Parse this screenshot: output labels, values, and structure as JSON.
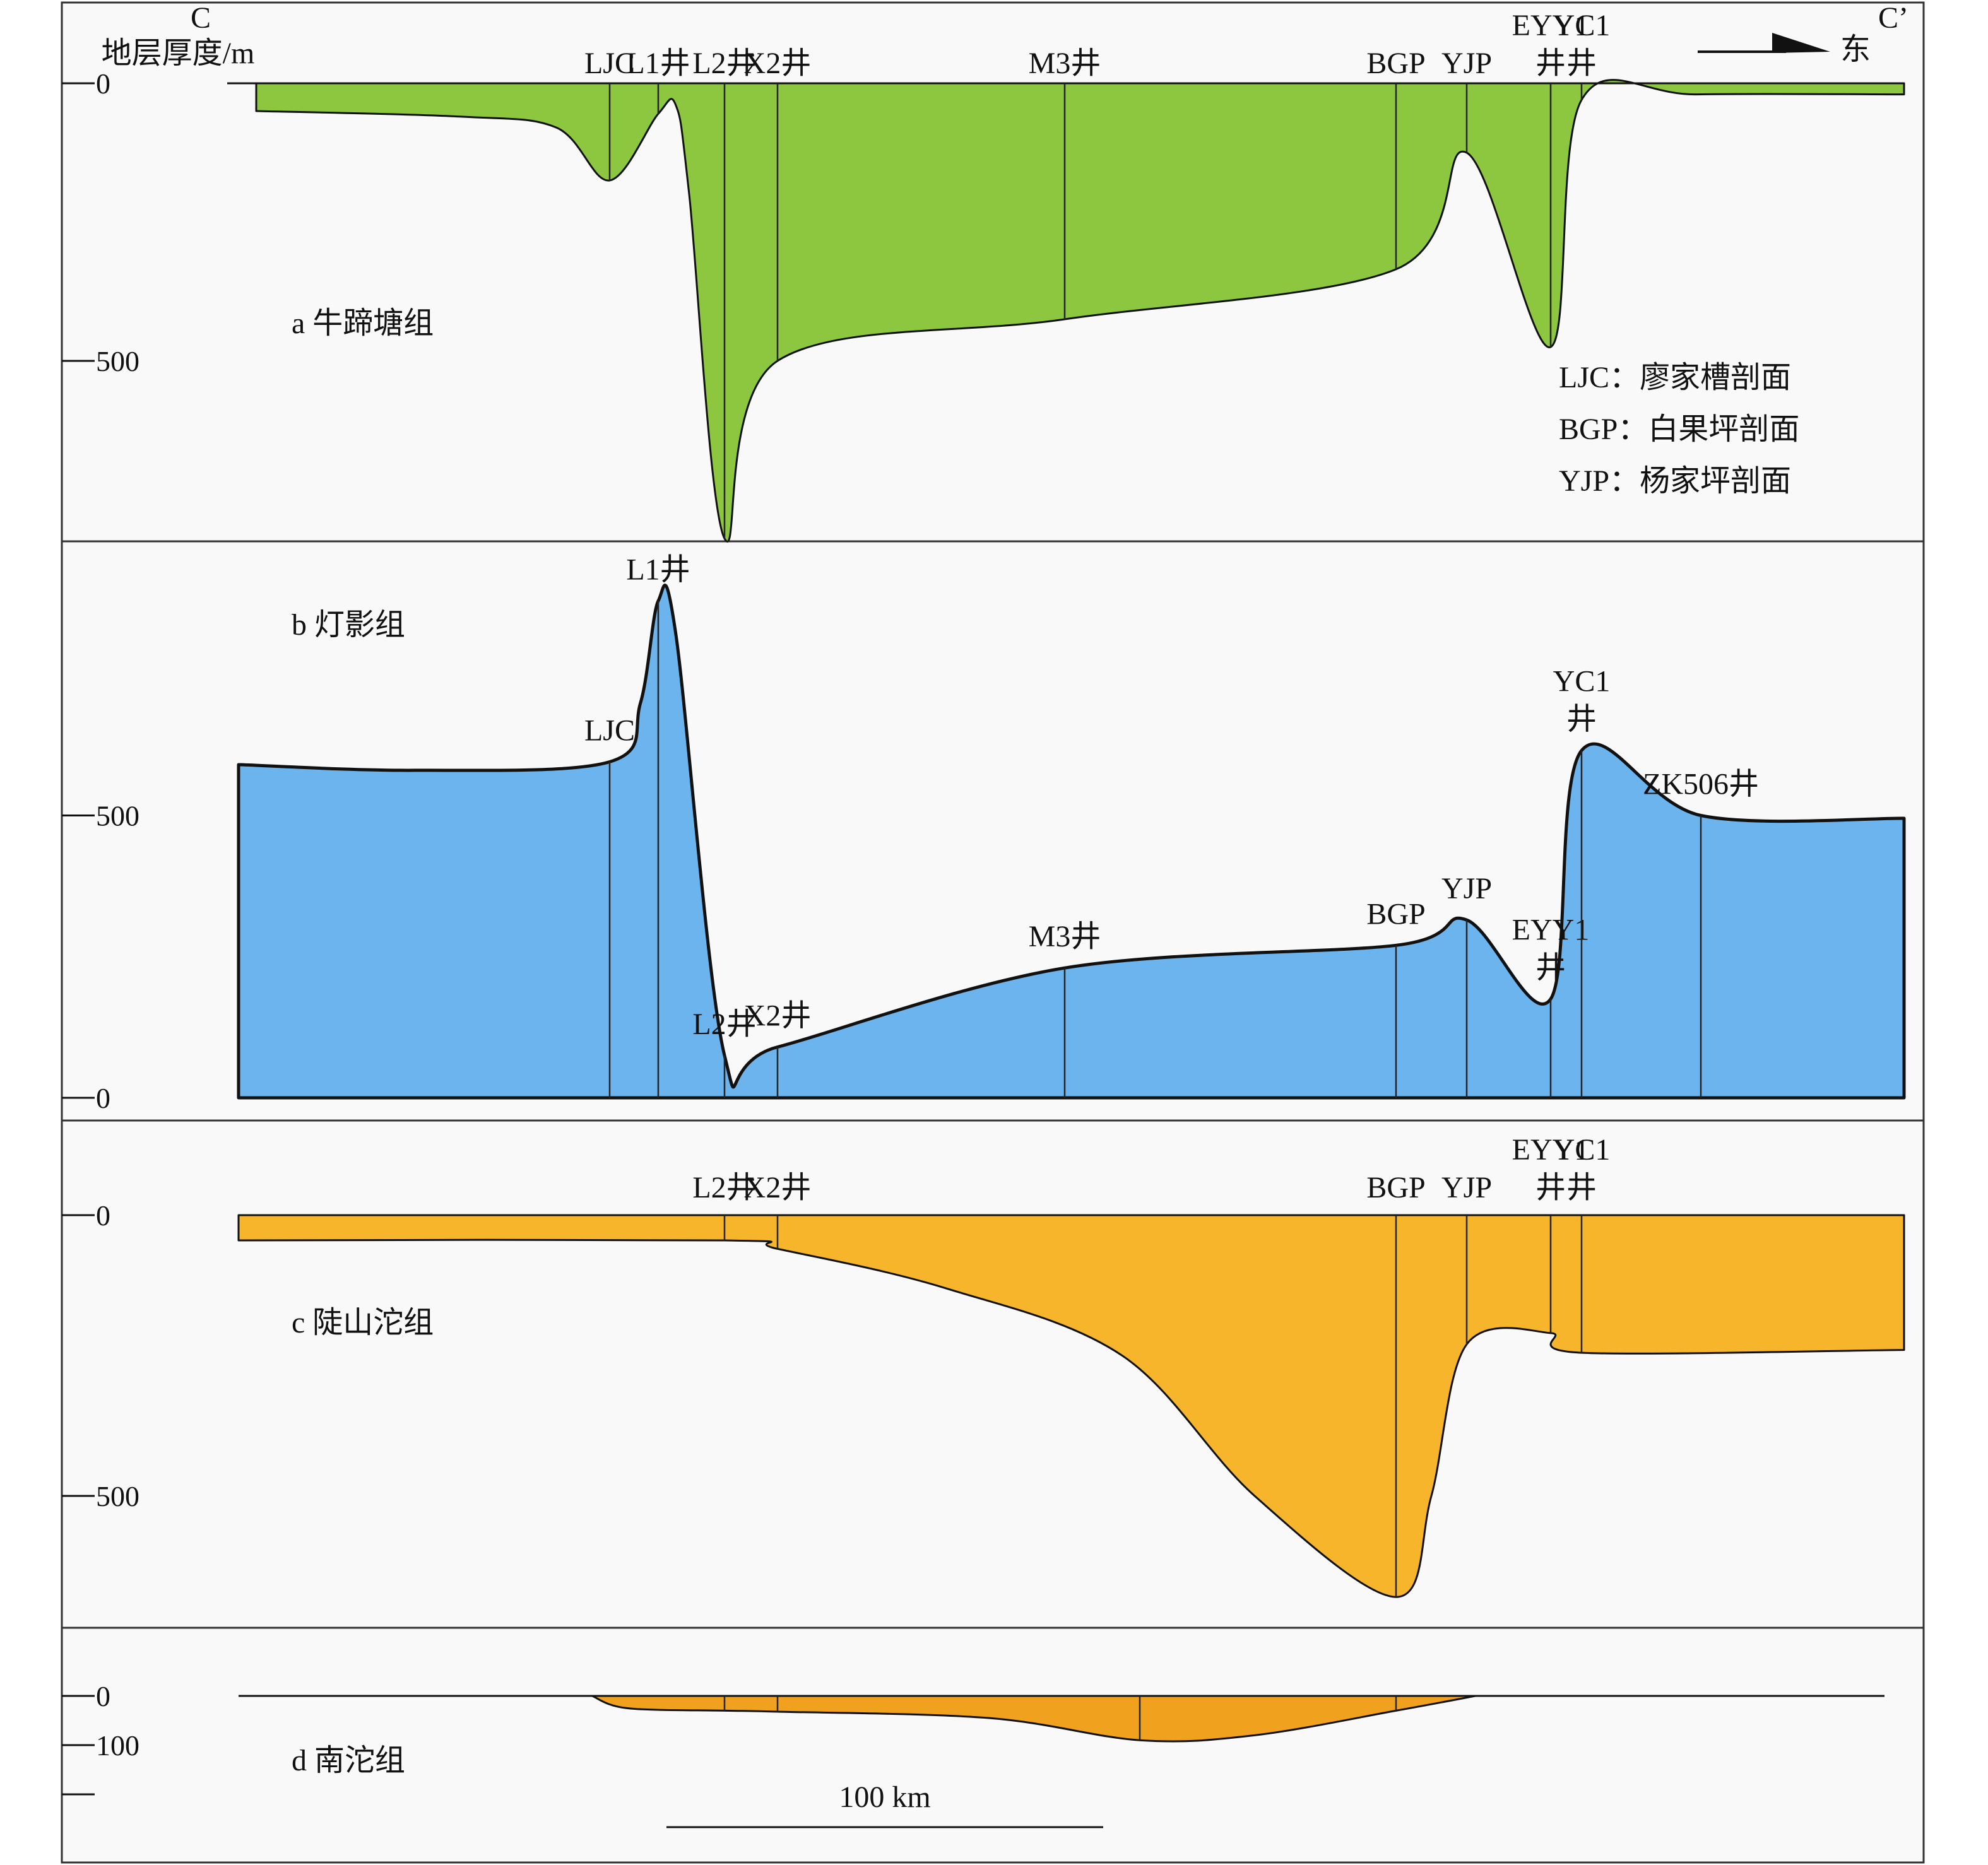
{
  "header": {
    "start_label": "C",
    "end_label": "C’",
    "axis_title": "地层厚度/m",
    "direction_label": "东"
  },
  "legend": [
    "LJC：廖家槽剖面",
    "BGP：白果坪剖面",
    "YJP：杨家坪剖面"
  ],
  "scale_bar": {
    "label": "100 km",
    "km": 100
  },
  "colors": {
    "niutitang": "#8dc63f",
    "dengying": "#6cb4ee",
    "doushantuo": "#f7b52b",
    "nantuo": "#f0a21e",
    "outline": "#111111",
    "frame": "#333333",
    "background": "#f9f9f9"
  },
  "panels": [
    {
      "id": "a",
      "title": "a 牛蹄塘组",
      "ticks": [
        {
          "value": 0,
          "label": "0"
        },
        {
          "value": 500,
          "label": "500"
        }
      ],
      "wells": [
        {
          "name": "LJC",
          "km": 84
        },
        {
          "name": "L1井",
          "km": 95
        },
        {
          "name": "L2井",
          "km": 110
        },
        {
          "name": "X2井",
          "km": 122
        },
        {
          "name": "M3井",
          "km": 187
        },
        {
          "name": "BGP",
          "km": 262
        },
        {
          "name": "YJP",
          "km": 278
        },
        {
          "name": "EYY1",
          "name2": "井",
          "km": 297
        },
        {
          "name": "YC1",
          "name2": "井",
          "km": 304
        }
      ],
      "thickness_m": [
        {
          "km": 4,
          "m": 50
        },
        {
          "km": 50,
          "m": 60
        },
        {
          "km": 72,
          "m": 80
        },
        {
          "km": 84,
          "m": 175
        },
        {
          "km": 95,
          "m": 55
        },
        {
          "km": 99,
          "m": 40
        },
        {
          "km": 102,
          "m": 200
        },
        {
          "km": 110,
          "m": 820
        },
        {
          "km": 122,
          "m": 500
        },
        {
          "km": 187,
          "m": 425
        },
        {
          "km": 262,
          "m": 335
        },
        {
          "km": 278,
          "m": 125
        },
        {
          "km": 297,
          "m": 475
        },
        {
          "km": 304,
          "m": 30
        },
        {
          "km": 330,
          "m": 20
        },
        {
          "km": 377,
          "m": 20
        }
      ]
    },
    {
      "id": "b",
      "title": "b 灯影组",
      "ticks": [
        {
          "value": 0,
          "label": "0"
        },
        {
          "value": 500,
          "label": "500"
        }
      ],
      "wells": [
        {
          "name": "LJC",
          "km": 84
        },
        {
          "name": "L1井",
          "km": 95
        },
        {
          "name": "L2井",
          "km": 110
        },
        {
          "name": "X2井",
          "km": 122
        },
        {
          "name": "M3井",
          "km": 187
        },
        {
          "name": "BGP",
          "km": 262
        },
        {
          "name": "YJP",
          "km": 278
        },
        {
          "name": "EYY1",
          "name2": "井",
          "km": 297
        },
        {
          "name": "YC1",
          "name2": "井",
          "km": 304
        },
        {
          "name": "ZK506井",
          "km": 331
        }
      ],
      "thickness_m": [
        {
          "km": 0,
          "m": 590
        },
        {
          "km": 40,
          "m": 580
        },
        {
          "km": 84,
          "m": 595
        },
        {
          "km": 91,
          "m": 700
        },
        {
          "km": 95,
          "m": 880
        },
        {
          "km": 99,
          "m": 820
        },
        {
          "km": 110,
          "m": 75
        },
        {
          "km": 122,
          "m": 90
        },
        {
          "km": 187,
          "m": 230
        },
        {
          "km": 262,
          "m": 270
        },
        {
          "km": 278,
          "m": 315
        },
        {
          "km": 297,
          "m": 175
        },
        {
          "km": 304,
          "m": 615
        },
        {
          "km": 331,
          "m": 500
        },
        {
          "km": 377,
          "m": 495
        }
      ]
    },
    {
      "id": "c",
      "title": "c 陡山沱组",
      "ticks": [
        {
          "value": 0,
          "label": "0"
        },
        {
          "value": 500,
          "label": "500"
        }
      ],
      "wells": [
        {
          "name": "L2井",
          "km": 110
        },
        {
          "name": "X2井",
          "km": 122
        },
        {
          "name": "BGP",
          "km": 262
        },
        {
          "name": "YJP",
          "km": 278
        },
        {
          "name": "EYY1",
          "name2": "井",
          "km": 297
        },
        {
          "name": "YC1",
          "name2": "井",
          "km": 304
        }
      ],
      "thickness_m": [
        {
          "km": 0,
          "m": 45
        },
        {
          "km": 110,
          "m": 45
        },
        {
          "km": 122,
          "m": 60
        },
        {
          "km": 160,
          "m": 130
        },
        {
          "km": 200,
          "m": 250
        },
        {
          "km": 230,
          "m": 500
        },
        {
          "km": 262,
          "m": 680
        },
        {
          "km": 270,
          "m": 500
        },
        {
          "km": 278,
          "m": 230
        },
        {
          "km": 297,
          "m": 210
        },
        {
          "km": 304,
          "m": 245
        },
        {
          "km": 377,
          "m": 240
        }
      ]
    },
    {
      "id": "d",
      "title": "d 南沱组",
      "ticks": [
        {
          "value": 0,
          "label": "0"
        },
        {
          "value": 100,
          "label": "100"
        },
        {
          "value": 200,
          "label": ""
        }
      ],
      "wells": [
        {
          "name": "",
          "km": 110
        },
        {
          "name": "",
          "km": 122
        },
        {
          "name": "",
          "km": 204
        },
        {
          "name": "",
          "km": 262
        }
      ],
      "thickness_m": [
        {
          "km": 80,
          "m": 0
        },
        {
          "km": 88,
          "m": 25
        },
        {
          "km": 110,
          "m": 30
        },
        {
          "km": 122,
          "m": 32
        },
        {
          "km": 170,
          "m": 45
        },
        {
          "km": 204,
          "m": 90
        },
        {
          "km": 230,
          "m": 80
        },
        {
          "km": 262,
          "m": 30
        },
        {
          "km": 280,
          "m": 0
        }
      ]
    }
  ]
}
